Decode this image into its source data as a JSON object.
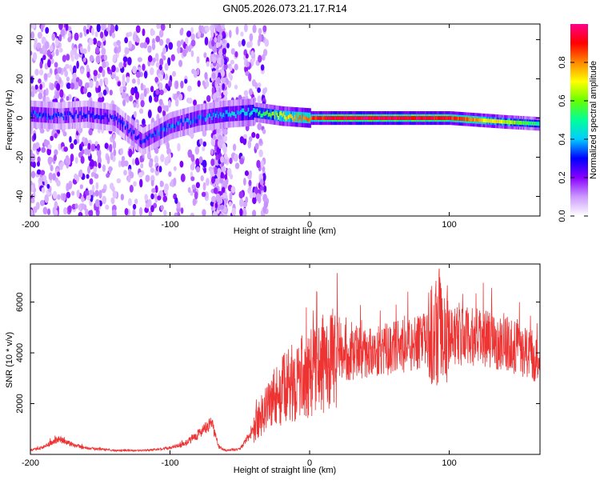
{
  "figure_title": "GN05.2026.073.21.17.R14",
  "chart_data": [
    {
      "type": "heatmap",
      "title": "GN05.2026.073.21.17.R14",
      "xlabel": "Height of straight line (km)",
      "ylabel": "Frequency (Hz)",
      "xlim": [
        -200,
        165
      ],
      "ylim": [
        -50,
        48
      ],
      "x_ticks": [
        -200,
        -100,
        0,
        100
      ],
      "x_tick_labels": [
        "-200",
        "-100",
        "0",
        "100"
      ],
      "y_ticks": [
        -40,
        -20,
        0,
        20,
        40
      ],
      "y_tick_labels": [
        "-40",
        "-20",
        "0",
        "20",
        "40"
      ],
      "colorbar": {
        "label": "Normalized spectral amplitude",
        "range": [
          0,
          1
        ],
        "ticks": [
          0,
          0.2,
          0.4,
          0.6,
          0.8
        ],
        "tick_labels": [
          "0.0",
          "0.2",
          "0.4",
          "0.6",
          "0.8"
        ],
        "colors": [
          "#ffffff",
          "#cc99ff",
          "#8800ff",
          "#0000ff",
          "#00ccff",
          "#00ff99",
          "#66ff00",
          "#ffff00",
          "#ff8800",
          "#ff0000",
          "#ff0088"
        ]
      },
      "ridge": {
        "x": [
          -200,
          -180,
          -160,
          -140,
          -120,
          -100,
          -80,
          -60,
          -40,
          -20,
          0,
          20,
          60,
          100,
          140,
          165
        ],
        "freq": [
          2,
          1,
          2,
          0,
          -12,
          -4,
          0,
          2,
          3,
          1,
          0,
          0,
          0,
          0,
          -2,
          -3
        ],
        "amplitude": [
          0.35,
          0.3,
          0.3,
          0.3,
          0.3,
          0.35,
          0.35,
          0.4,
          0.45,
          0.7,
          0.85,
          0.95,
          0.95,
          0.9,
          0.65,
          0.5
        ]
      }
    },
    {
      "type": "line",
      "title": "",
      "xlabel": "Height of straight line (km)",
      "ylabel": "SNR (10 * v/v)",
      "xlim": [
        -200,
        165
      ],
      "ylim": [
        0,
        7500
      ],
      "x_ticks": [
        -200,
        -100,
        0,
        100
      ],
      "x_tick_labels": [
        "-200",
        "-100",
        "0",
        "100"
      ],
      "y_ticks": [
        2000,
        4000,
        6000
      ],
      "y_tick_labels": [
        "2000",
        "4000",
        "6000"
      ],
      "color": "#ee3333",
      "envelope": {
        "x": [
          -200,
          -190,
          -180,
          -170,
          -160,
          -150,
          -140,
          -130,
          -120,
          -110,
          -100,
          -90,
          -80,
          -70,
          -65,
          -60,
          -50,
          -40,
          -35,
          -30,
          -20,
          -10,
          0,
          10,
          20,
          40,
          60,
          80,
          90,
          93,
          95,
          100,
          120,
          140,
          165
        ],
        "y": [
          150,
          300,
          600,
          400,
          250,
          200,
          150,
          150,
          150,
          200,
          250,
          400,
          800,
          1200,
          300,
          150,
          200,
          1000,
          1500,
          2000,
          2500,
          2900,
          3200,
          3600,
          3800,
          4000,
          4200,
          4400,
          4700,
          5200,
          4600,
          4700,
          4600,
          4400,
          3700
        ]
      }
    }
  ]
}
